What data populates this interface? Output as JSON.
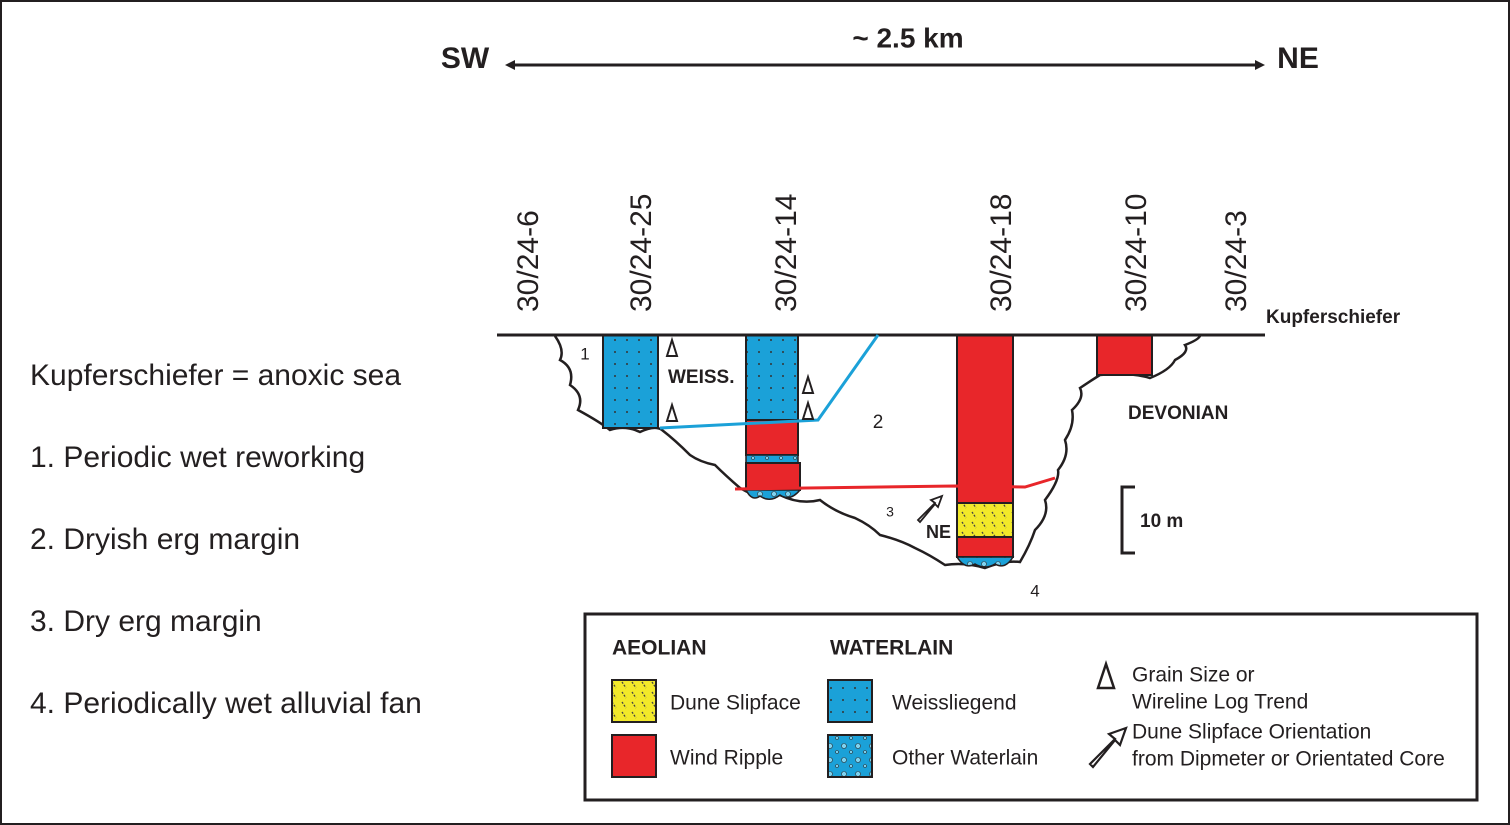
{
  "header": {
    "sw": "SW",
    "distance": "~ 2.5 km",
    "ne": "NE"
  },
  "wells": [
    "30/24-6",
    "30/24-25",
    "30/24-14",
    "30/24-18",
    "30/24-10",
    "30/24-3"
  ],
  "horizon": "Kupferschiefer",
  "section_labels": {
    "zone_1": "1",
    "weiss": "WEISS.",
    "zone_2": "2",
    "devonian": "DEVONIAN",
    "zone_3": "3",
    "orientation": "NE",
    "zone_4": "4",
    "scale": "10 m"
  },
  "notes": [
    "Kupferschiefer = anoxic sea",
    "1. Periodic wet reworking",
    "2. Dryish erg margin",
    "3. Dry erg margin",
    "4. Periodically wet alluvial fan"
  ],
  "legend": {
    "aeolian": "AEOLIAN",
    "waterlain": "WATERLAIN",
    "dune_slipface": "Dune Slipface",
    "wind_ripple": "Wind Ripple",
    "weissliegend": "Weissliegend",
    "other_waterlain": "Other Waterlain",
    "trend_line1": "Grain Size or",
    "trend_line2": "Wireline Log Trend",
    "orient_line1": "Dune Slipface Orientation",
    "orient_line2": "from Dipmeter or Orientated Core"
  }
}
